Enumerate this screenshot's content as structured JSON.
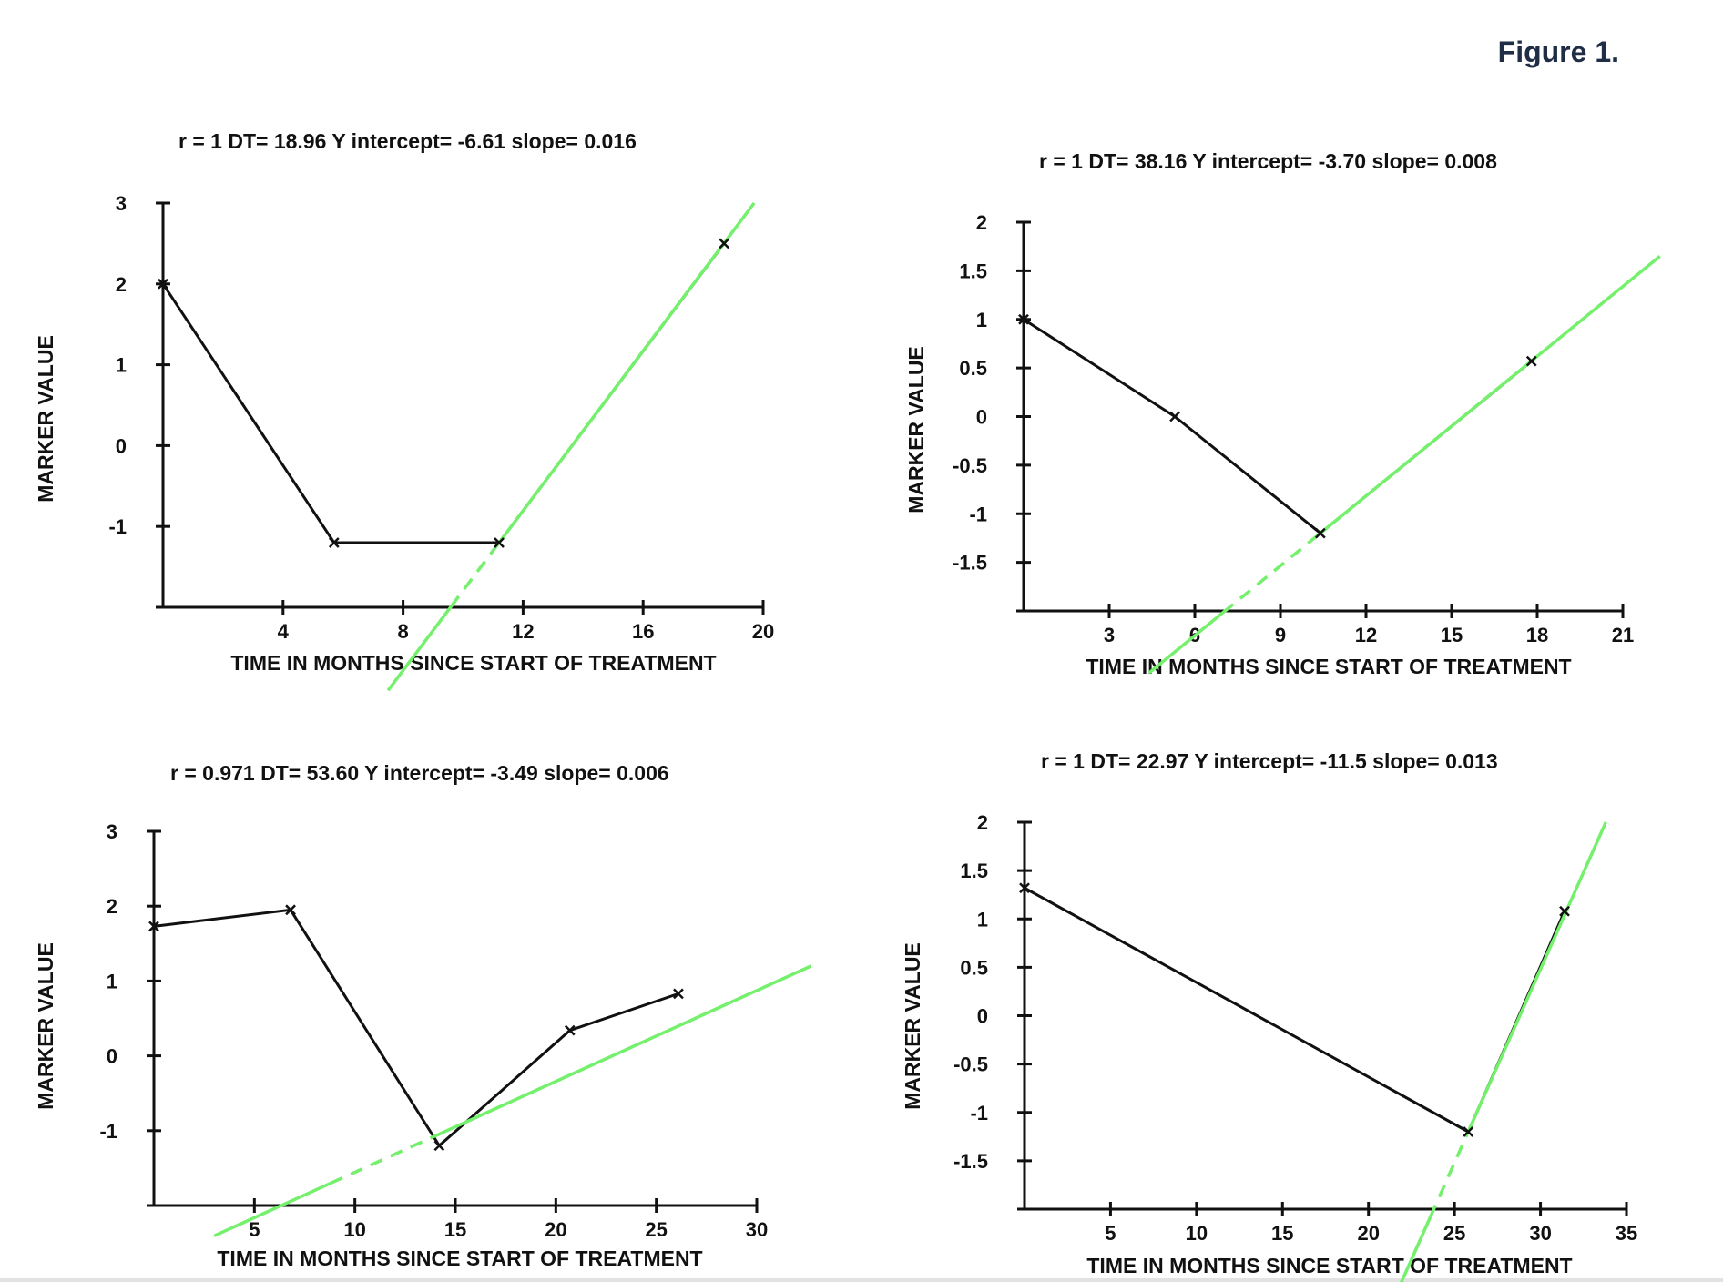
{
  "figure_label": "Figure 1.",
  "colors": {
    "data_line": "#111111",
    "fit_line": "#74f06c",
    "text": "#111111",
    "figure_label": "#1f2e45"
  },
  "chart_data": [
    {
      "type": "line",
      "title": "r = 1 DT= 18.96 Y intercept= -6.61 slope= 0.016",
      "xlabel": "TIME IN MONTHS SINCE START OF TREATMENT",
      "ylabel": "MARKER VALUE",
      "xlim": [
        0,
        20
      ],
      "ylim": [
        -2,
        3
      ],
      "x_ticks": [
        4,
        8,
        12,
        16,
        20
      ],
      "x_tick_labels": [
        "4",
        "8",
        "12",
        "16",
        "20"
      ],
      "y_ticks": [
        -1,
        0,
        1,
        2,
        3
      ],
      "y_tick_labels": [
        "-1",
        "0",
        "1",
        "2",
        "3"
      ],
      "series": [
        {
          "x": [
            0,
            5.7,
            11.2,
            18.7
          ],
          "y": [
            2,
            -1.2,
            -1.2,
            2.5
          ]
        }
      ],
      "fit": {
        "x": [
          11.2,
          19.7
        ],
        "y": [
          -1.2,
          3.0
        ],
        "extrapolated_to_x": 7.5,
        "dashed_to_x": 9.6
      }
    },
    {
      "type": "line",
      "title": "r = 1 DT= 38.16 Y intercept= -3.70 slope= 0.008",
      "xlabel": "TIME IN MONTHS SINCE START OF TREATMENT",
      "ylabel": "MARKER VALUE",
      "xlim": [
        0,
        21
      ],
      "ylim": [
        -2,
        2
      ],
      "x_ticks": [
        3,
        6,
        9,
        12,
        15,
        18,
        21
      ],
      "x_tick_labels": [
        "3",
        "6",
        "9",
        "12",
        "15",
        "18",
        "21"
      ],
      "y_ticks": [
        -1.5,
        -1,
        -0.5,
        0,
        0.5,
        1,
        1.5,
        2
      ],
      "y_tick_labels": [
        "-1.5",
        "-1",
        "-0.5",
        "0",
        "0.5",
        "1",
        "1.5",
        "2"
      ],
      "series": [
        {
          "x": [
            0,
            5.3,
            10.4,
            17.8
          ],
          "y": [
            1,
            0,
            -1.2,
            0.57
          ]
        }
      ],
      "fit": {
        "x": [
          10.4,
          22.3
        ],
        "y": [
          -1.2,
          1.65
        ],
        "extrapolated_to_x": 4.4,
        "dashed_to_x": 7.0
      }
    },
    {
      "type": "line",
      "title": "r = 0.971 DT= 53.60 Y intercept= -3.49 slope= 0.006",
      "xlabel": "TIME IN MONTHS SINCE START OF TREATMENT",
      "ylabel": "MARKER VALUE",
      "xlim": [
        0,
        30
      ],
      "ylim": [
        -2,
        3
      ],
      "x_ticks": [
        5,
        10,
        15,
        20,
        25,
        30
      ],
      "x_tick_labels": [
        "5",
        "10",
        "15",
        "20",
        "25",
        "30"
      ],
      "y_ticks": [
        -1,
        0,
        1,
        2,
        3
      ],
      "y_tick_labels": [
        "-1",
        "0",
        "1",
        "2",
        "3"
      ],
      "series": [
        {
          "x": [
            0,
            6.8,
            14.2,
            20.7,
            26.1
          ],
          "y": [
            1.73,
            1.95,
            -1.2,
            0.34,
            0.83
          ]
        }
      ],
      "fit": {
        "x": [
          14.0,
          32.7
        ],
        "y": [
          -1.07,
          1.2
        ],
        "extrapolated_to_x": 3.0,
        "dashed_to_x": 8.8
      }
    },
    {
      "type": "line",
      "title": "r = 1 DT= 22.97 Y intercept= -11.5 slope= 0.013",
      "xlabel": "TIME IN MONTHS SINCE START OF TREATMENT",
      "ylabel": "MARKER VALUE",
      "xlim": [
        0,
        35
      ],
      "ylim": [
        -2,
        2
      ],
      "x_ticks": [
        5,
        10,
        15,
        20,
        25,
        30,
        35
      ],
      "x_tick_labels": [
        "5",
        "10",
        "15",
        "20",
        "25",
        "30",
        "35"
      ],
      "y_ticks": [
        -1.5,
        -1,
        -0.5,
        0,
        0.5,
        1,
        1.5,
        2
      ],
      "y_tick_labels": [
        "-1.5",
        "-1",
        "-0.5",
        "0",
        "0.5",
        "1",
        "1.5",
        "2"
      ],
      "series": [
        {
          "x": [
            0,
            25.8,
            31.4
          ],
          "y": [
            1.32,
            -1.2,
            1.08
          ]
        }
      ],
      "fit": {
        "x": [
          25.8,
          33.8
        ],
        "y": [
          -1.2,
          2.0
        ],
        "extrapolated_to_x": 21.3,
        "dashed_to_x": 23.6
      }
    }
  ]
}
